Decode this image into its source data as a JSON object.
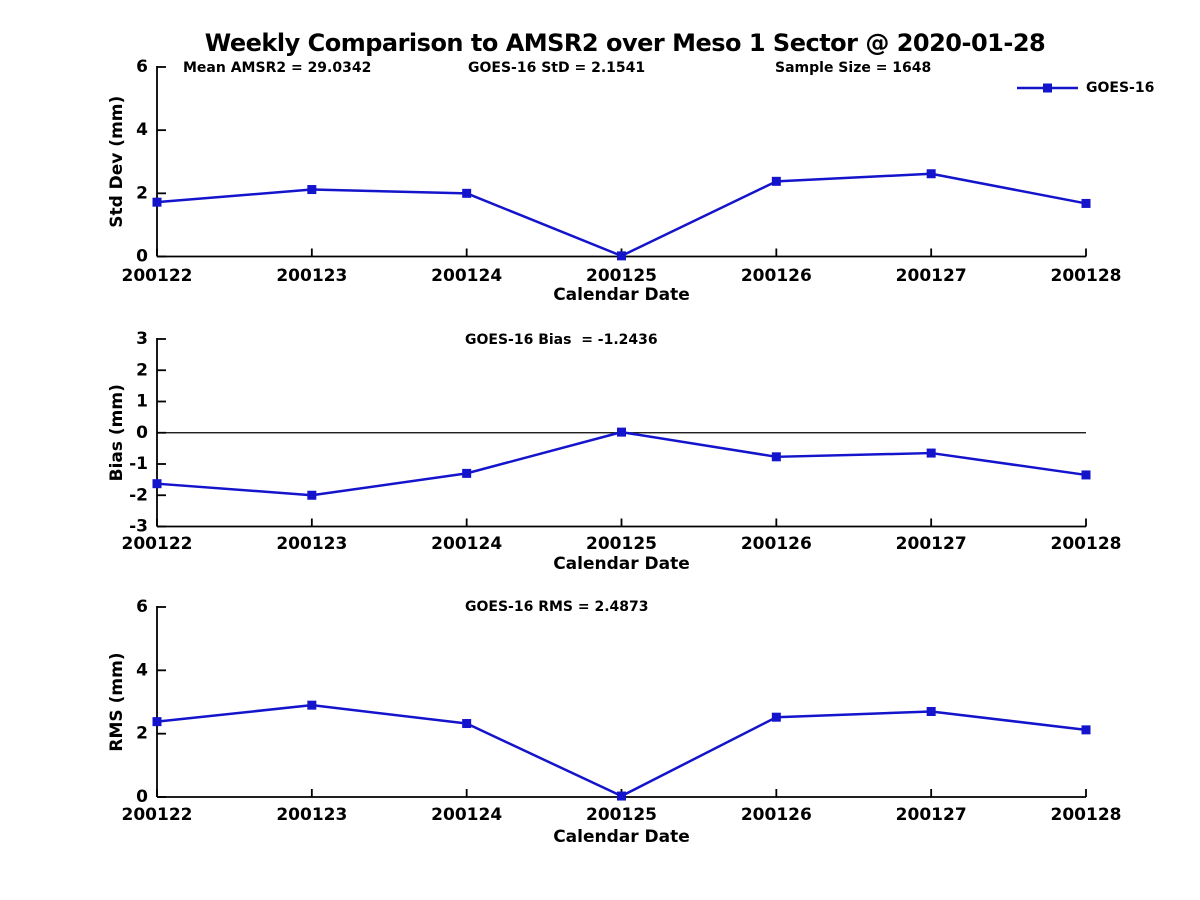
{
  "title": "Weekly Comparison to AMSR2 over Meso 1 Sector @ 2020-01-28",
  "accent_color": "#1414cc",
  "text_color": "#000000",
  "background_color": "#ffffff",
  "chart_data": [
    {
      "type": "line",
      "name": "std-dev",
      "ylabel": "Std Dev (mm)",
      "xlabel": "Calendar Date",
      "ylim": [
        0,
        6
      ],
      "yticks": [
        0,
        2,
        4,
        6
      ],
      "grid": false,
      "zero_line": false,
      "categories": [
        "200122",
        "200123",
        "200124",
        "200125",
        "200126",
        "200127",
        "200128"
      ],
      "series": [
        {
          "name": "GOES-16",
          "color": "#1414cc",
          "marker": "square",
          "values": [
            1.72,
            2.12,
            2.0,
            0.02,
            2.38,
            2.62,
            1.68
          ]
        }
      ],
      "annotations": [
        "Mean AMSR2 = 29.0342",
        "GOES-16 StD = 2.1541",
        "Sample Size = 1648"
      ],
      "legend": {
        "entries": [
          "GOES-16"
        ],
        "position": "top-right"
      }
    },
    {
      "type": "line",
      "name": "bias",
      "ylabel": "Bias (mm)",
      "xlabel": "Calendar Date",
      "ylim": [
        -3,
        3
      ],
      "yticks": [
        -3,
        -2,
        -1,
        0,
        1,
        2,
        3
      ],
      "grid": false,
      "zero_line": true,
      "categories": [
        "200122",
        "200123",
        "200124",
        "200125",
        "200126",
        "200127",
        "200128"
      ],
      "series": [
        {
          "name": "GOES-16",
          "color": "#1414cc",
          "marker": "square",
          "values": [
            -1.63,
            -2.0,
            -1.3,
            0.02,
            -0.77,
            -0.65,
            -1.35
          ]
        }
      ],
      "annotations": [
        "GOES-16 Bias  = -1.2436"
      ],
      "legend": null
    },
    {
      "type": "line",
      "name": "rms",
      "ylabel": "RMS (mm)",
      "xlabel": "Calendar Date",
      "ylim": [
        0,
        6
      ],
      "yticks": [
        0,
        2,
        4,
        6
      ],
      "grid": false,
      "zero_line": false,
      "categories": [
        "200122",
        "200123",
        "200124",
        "200125",
        "200126",
        "200127",
        "200128"
      ],
      "series": [
        {
          "name": "GOES-16",
          "color": "#1414cc",
          "marker": "square",
          "values": [
            2.38,
            2.9,
            2.32,
            0.03,
            2.52,
            2.7,
            2.12
          ]
        }
      ],
      "annotations": [
        "GOES-16 RMS = 2.4873"
      ],
      "legend": null
    }
  ]
}
